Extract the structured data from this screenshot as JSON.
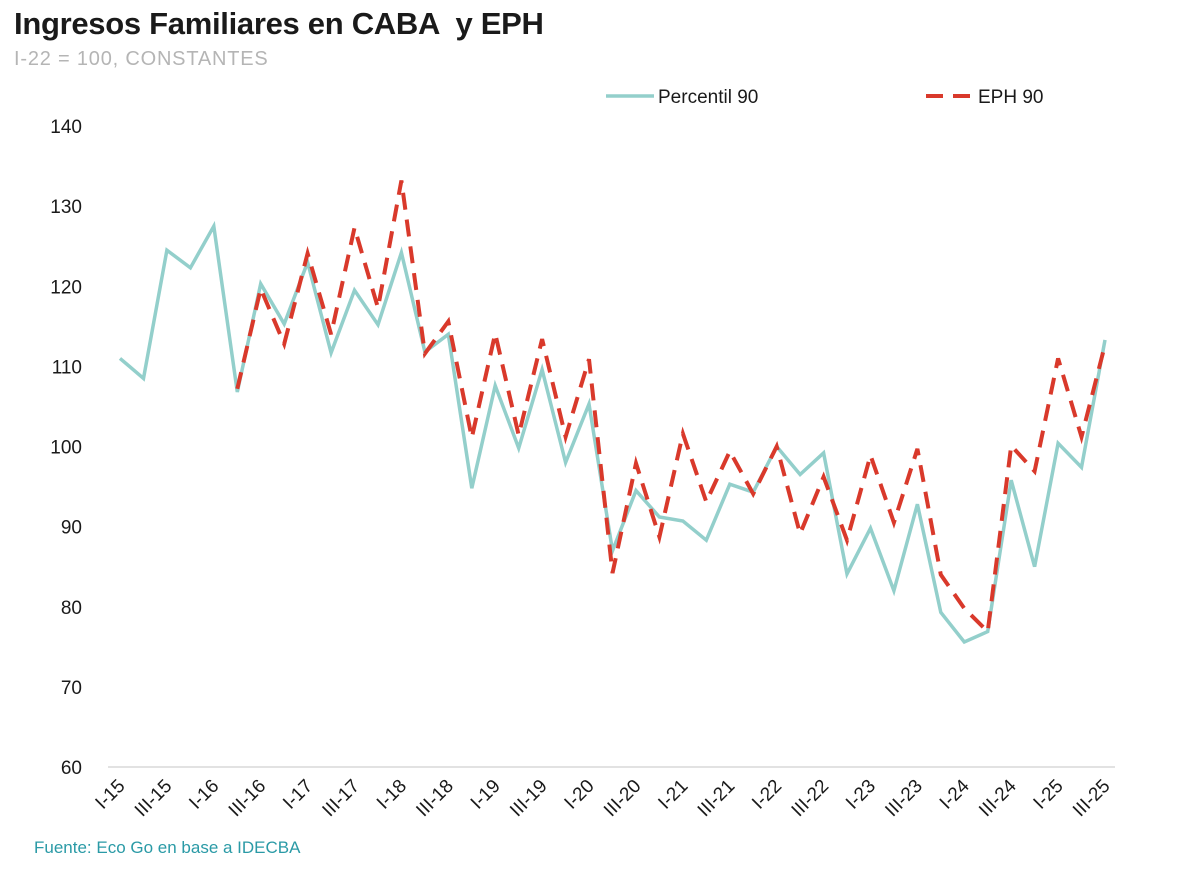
{
  "title": "Ingresos Familiares en CABA  y EPH",
  "subtitle": "I-22 = 100, CONSTANTES",
  "source": "Fuente: Eco Go en base a IDECBA",
  "chart_data": {
    "type": "line",
    "title": "Ingresos Familiares en CABA  y EPH",
    "subtitle": "I-22 = 100, CONSTANTES",
    "xlabel": "",
    "ylabel": "",
    "ylim": [
      60,
      140
    ],
    "yticks": [
      60,
      70,
      80,
      90,
      100,
      110,
      120,
      130,
      140
    ],
    "grid": false,
    "legend": "top",
    "x_tick_labels": [
      "I-15",
      "III-15",
      "I-16",
      "III-16",
      "I-17",
      "III-17",
      "I-18",
      "III-18",
      "I-19",
      "III-19",
      "I-20",
      "III-20",
      "I-21",
      "III-21",
      "I-22",
      "III-22",
      "I-23",
      "III-23",
      "I-24",
      "III-24",
      "I-25",
      "III-25"
    ],
    "categories": [
      "I-15",
      "II-15",
      "III-15",
      "IV-15",
      "I-16",
      "II-16",
      "III-16",
      "IV-16",
      "I-17",
      "II-17",
      "III-17",
      "IV-17",
      "I-18",
      "II-18",
      "III-18",
      "IV-18",
      "I-19",
      "II-19",
      "III-19",
      "IV-19",
      "I-20",
      "II-20",
      "III-20",
      "IV-20",
      "I-21",
      "II-21",
      "III-21",
      "IV-21",
      "I-22",
      "II-22",
      "III-22",
      "IV-22",
      "I-23",
      "II-23",
      "III-23",
      "IV-23",
      "I-24",
      "II-24",
      "III-24",
      "IV-24",
      "I-25",
      "II-25",
      "III-25"
    ],
    "series": [
      {
        "name": "Percentil 90",
        "color": "#93cfcb",
        "style": "solid",
        "values": [
          111,
          108.5,
          124.5,
          122.3,
          127.5,
          106.8,
          120.3,
          115.3,
          123,
          111.7,
          119.5,
          115.2,
          124.2,
          111.8,
          114,
          94.8,
          107.6,
          99.8,
          109.6,
          98,
          105.3,
          87,
          94.5,
          91.2,
          90.7,
          88.3,
          95.3,
          94.3,
          100,
          96.5,
          99.2,
          84.1,
          89.8,
          82,
          92.8,
          79.3,
          75.6,
          76.9,
          95.8,
          85,
          100.4,
          97.4,
          113.3
        ]
      },
      {
        "name": "EPH 90",
        "color": "#d9392b",
        "style": "dashed",
        "values": [
          null,
          null,
          null,
          null,
          null,
          107.2,
          119.7,
          112.8,
          124.1,
          114,
          127.3,
          117.3,
          133.2,
          111.6,
          115.6,
          101.1,
          114.1,
          101.4,
          113.4,
          101.2,
          110.9,
          84.2,
          97.9,
          88.7,
          101.6,
          93.1,
          99.4,
          94.1,
          100,
          89.1,
          96.2,
          88.3,
          98.9,
          90.5,
          99.7,
          84,
          79.8,
          76.9,
          100.1,
          96.9,
          111,
          101.2,
          112.7
        ]
      }
    ]
  }
}
